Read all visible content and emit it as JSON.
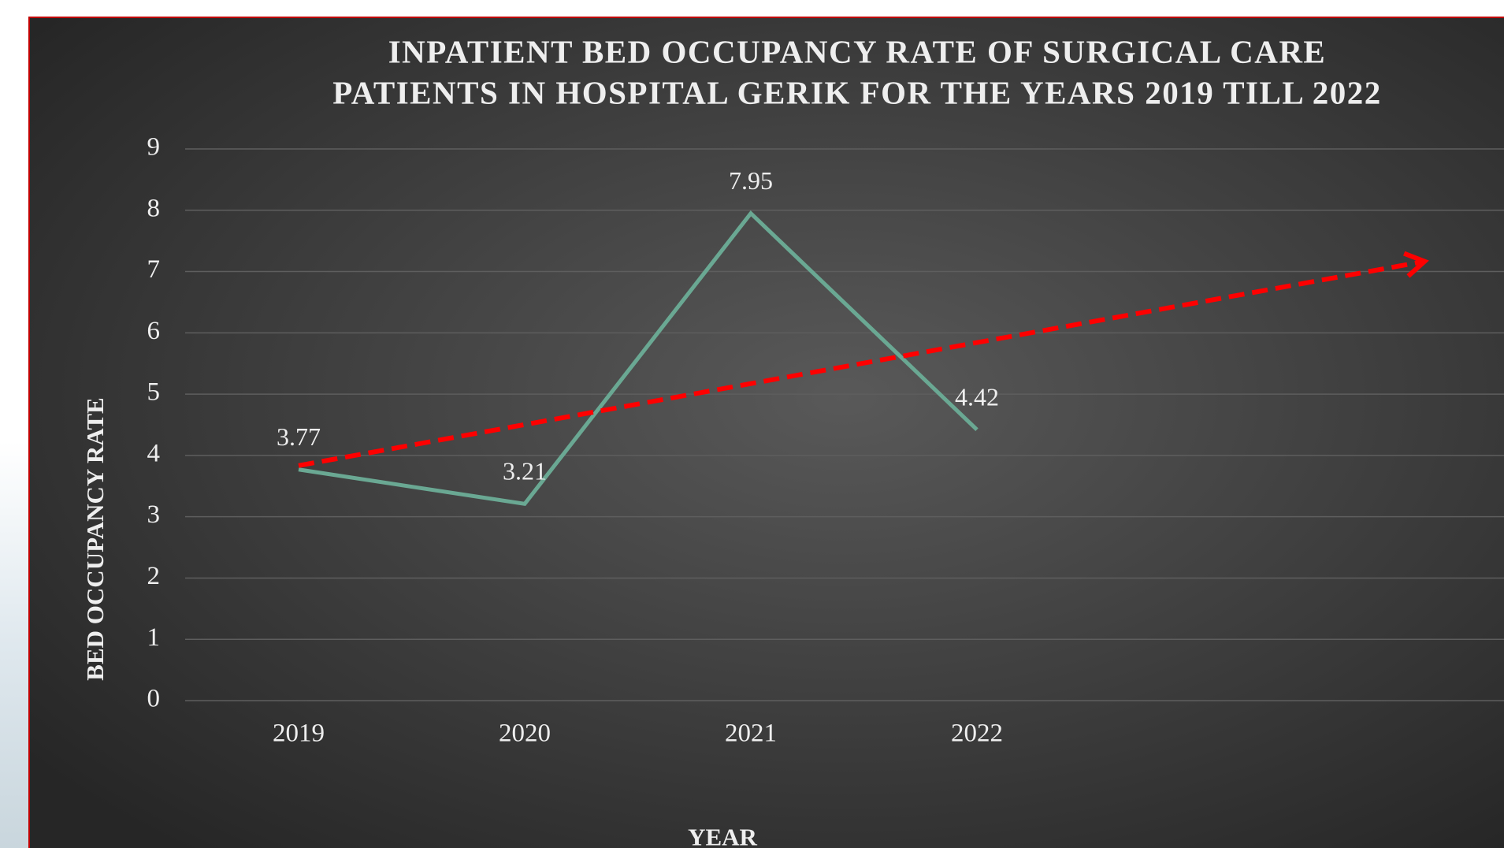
{
  "chart_data": {
    "type": "line",
    "title": [
      "INPATIENT BED OCCUPANCY RATE OF SURGICAL CARE",
      "PATIENTS IN HOSPITAL GERIK FOR THE YEARS 2019 TILL 2022"
    ],
    "x_label": "YEAR",
    "y_label": "BED OCCUPANCY RATE",
    "categories": [
      "2019",
      "2020",
      "2021",
      "2022"
    ],
    "series": [
      {
        "color": "#6aa893",
        "values": [
          3.77,
          3.21,
          7.95,
          4.42
        ]
      }
    ],
    "trendline": {
      "type": "linear",
      "color": "#ff0000"
    },
    "ylim": [
      0,
      9
    ],
    "yticks": [
      0,
      1,
      2,
      3,
      4,
      5,
      6,
      7,
      8,
      9
    ],
    "grid": true
  }
}
